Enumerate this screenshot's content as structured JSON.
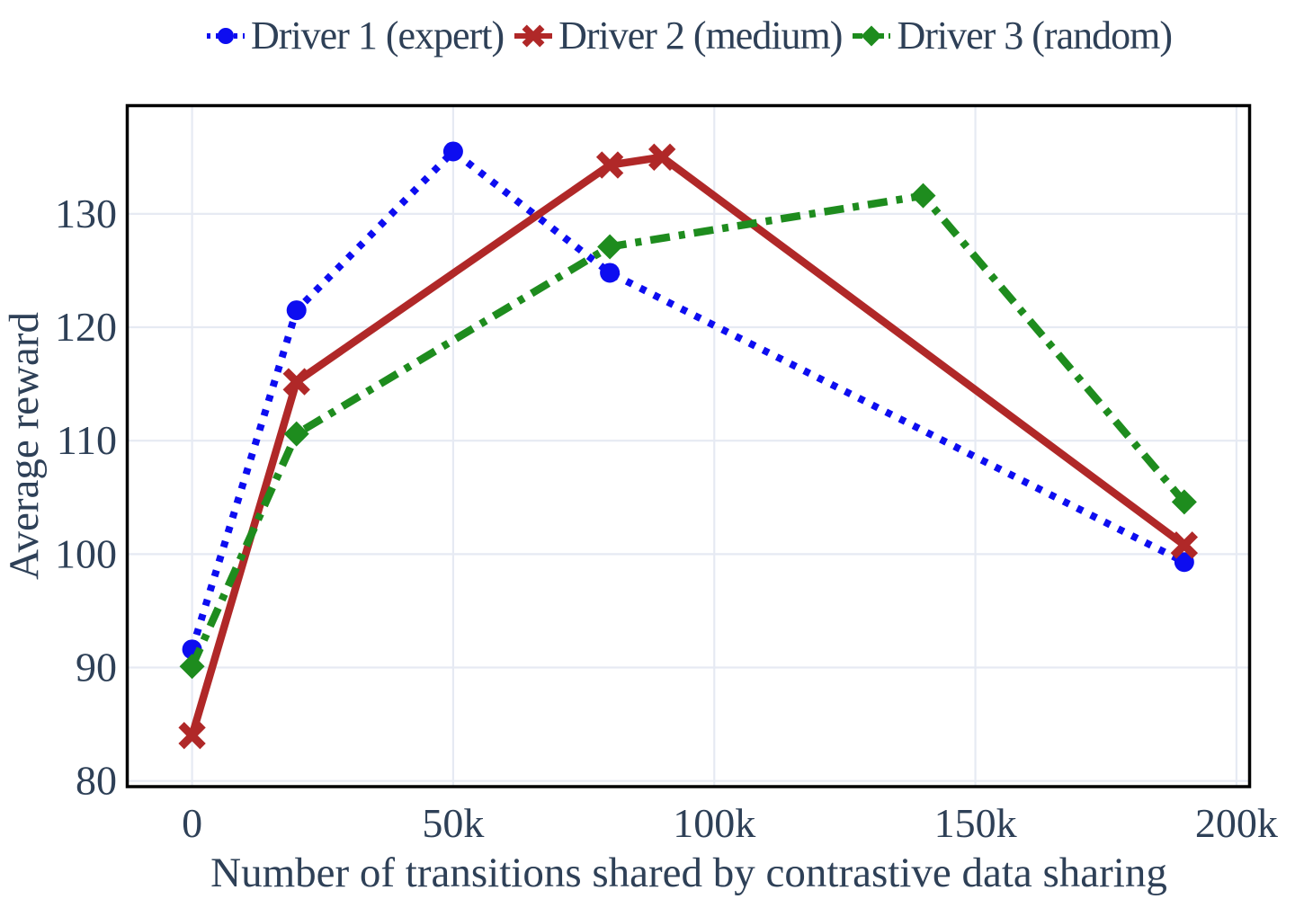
{
  "chart_data": {
    "type": "line",
    "title": "",
    "xlabel": "Number of transitions shared by contrastive data sharing",
    "ylabel": "Average reward",
    "x_ticks": [
      {
        "value": 0,
        "label": "0"
      },
      {
        "value": 50000,
        "label": "50k"
      },
      {
        "value": 100000,
        "label": "100k"
      },
      {
        "value": 150000,
        "label": "150k"
      },
      {
        "value": 200000,
        "label": "200k"
      }
    ],
    "y_ticks": [
      {
        "value": 80,
        "label": "80"
      },
      {
        "value": 90,
        "label": "90"
      },
      {
        "value": 100,
        "label": "100"
      },
      {
        "value": 110,
        "label": "110"
      },
      {
        "value": 120,
        "label": "120"
      },
      {
        "value": 130,
        "label": "130"
      }
    ],
    "xlim": [
      -12500,
      202600
    ],
    "ylim": [
      79.5,
      139.5
    ],
    "grid": true,
    "legend_position": "top-center",
    "series": [
      {
        "name": "Driver 1 (expert)",
        "color": "#0d0df0",
        "linestyle": "dotted",
        "marker": "circle",
        "x": [
          0,
          20000,
          50000,
          80000,
          190000
        ],
        "y": [
          91.6,
          121.5,
          135.5,
          124.8,
          99.3
        ]
      },
      {
        "name": "Driver 2 (medium)",
        "color": "#b02828",
        "linestyle": "solid",
        "marker": "x",
        "x": [
          0,
          20000,
          80000,
          90000,
          190000
        ],
        "y": [
          84.0,
          115.2,
          134.3,
          135.0,
          100.8
        ]
      },
      {
        "name": "Driver 3 (random)",
        "color": "#1e8c1e",
        "linestyle": "dashdot",
        "marker": "diamond",
        "x": [
          0,
          20000,
          80000,
          140000,
          190000
        ],
        "y": [
          90.1,
          110.6,
          127.1,
          131.6,
          104.6
        ]
      }
    ],
    "colors": {
      "text": "#2e4057",
      "grid": "#e6eaf3",
      "spine": "#000000",
      "background": "#ffffff"
    }
  }
}
